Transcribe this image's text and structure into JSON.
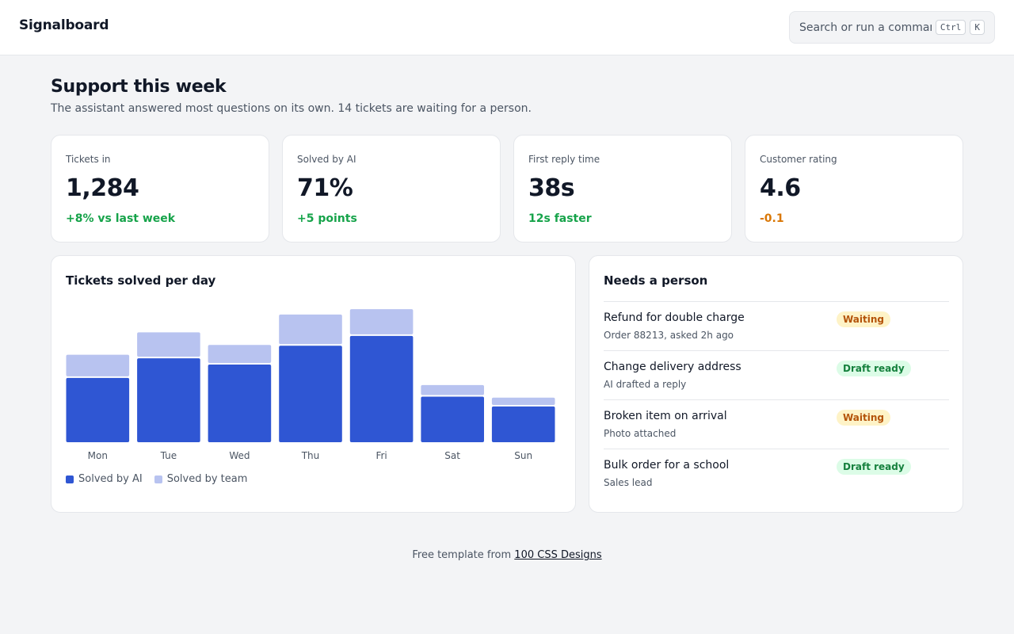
{
  "app": {
    "name": "Signalboard"
  },
  "search": {
    "placeholder": "Search or run a command",
    "shortcut_keys": [
      "Ctrl",
      "K"
    ]
  },
  "page": {
    "title": "Support this week",
    "subtitle": "The assistant answered most questions on its own. 14 tickets are waiting for a person."
  },
  "kpis": [
    {
      "label": "Tickets in",
      "value": "1,284",
      "delta": "+8% vs last week",
      "tone": "up"
    },
    {
      "label": "Solved by AI",
      "value": "71%",
      "delta": "+5 points",
      "tone": "up"
    },
    {
      "label": "First reply time",
      "value": "38s",
      "delta": "12s faster",
      "tone": "up"
    },
    {
      "label": "Customer rating",
      "value": "4.6",
      "delta": "-0.1",
      "tone": "warn"
    }
  ],
  "colors": {
    "ai": "#2f56d3",
    "team": "#b8c3f0",
    "up": "#16a34a",
    "warn": "#d97706"
  },
  "chart_data": {
    "type": "bar",
    "title": "Tickets solved per day",
    "stacked": true,
    "categories": [
      "Mon",
      "Tue",
      "Wed",
      "Thu",
      "Fri",
      "Sat",
      "Sun"
    ],
    "series": [
      {
        "name": "Solved by AI",
        "values": [
          72,
          94,
          87,
          108,
          119,
          51,
          40
        ]
      },
      {
        "name": "Solved by team",
        "values": [
          26,
          29,
          22,
          35,
          30,
          13,
          10
        ]
      }
    ],
    "ylim": [
      0,
      150
    ],
    "grid": false,
    "legend": "bottom-left"
  },
  "queue": {
    "title": "Needs a person",
    "items": [
      {
        "title": "Refund for double charge",
        "subtitle": "Order 88213, asked 2h ago",
        "status": "Waiting",
        "kind": "waiting"
      },
      {
        "title": "Change delivery address",
        "subtitle": "AI drafted a reply",
        "status": "Draft ready",
        "kind": "draft"
      },
      {
        "title": "Broken item on arrival",
        "subtitle": "Photo attached",
        "status": "Waiting",
        "kind": "waiting"
      },
      {
        "title": "Bulk order for a school",
        "subtitle": "Sales lead",
        "status": "Draft ready",
        "kind": "draft"
      }
    ]
  },
  "footer": {
    "prefix": "Free template from",
    "link_text": "100 CSS Designs"
  }
}
